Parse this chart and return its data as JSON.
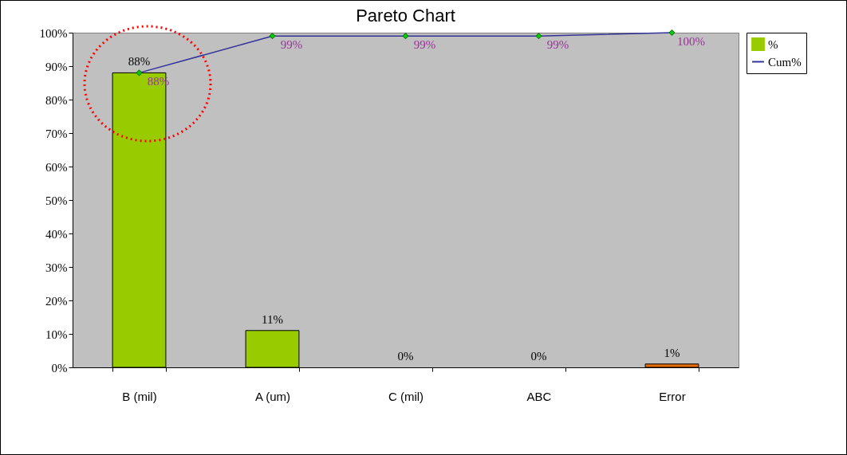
{
  "chart_data": {
    "type": "bar",
    "title": "Pareto Chart",
    "categories": [
      "B (mil)",
      "A (um)",
      "C (mil)",
      "ABC",
      "Error"
    ],
    "series": [
      {
        "name": "%",
        "color": "#99cc00",
        "colors": [
          "#99cc00",
          "#99cc00",
          "#99cc00",
          "#99cc00",
          "#e46c0a"
        ],
        "values": [
          88,
          11,
          0,
          0,
          1
        ],
        "value_labels": [
          "88%",
          "11%",
          "0%",
          "0%",
          "1%"
        ]
      },
      {
        "name": "Cum%",
        "type": "line",
        "color": "#333399",
        "marker": "diamond",
        "values": [
          88,
          99,
          99,
          99,
          100
        ],
        "value_labels": [
          "88%",
          "99%",
          "99%",
          "99%",
          "100%"
        ]
      }
    ],
    "ylim": [
      0,
      100
    ],
    "yticks": [
      {
        "value": 0,
        "label": "0%"
      },
      {
        "value": 10,
        "label": "10%"
      },
      {
        "value": 20,
        "label": "20%"
      },
      {
        "value": 30,
        "label": "30%"
      },
      {
        "value": 40,
        "label": "40%"
      },
      {
        "value": 50,
        "label": "50%"
      },
      {
        "value": 60,
        "label": "60%"
      },
      {
        "value": 70,
        "label": "70%"
      },
      {
        "value": 80,
        "label": "80%"
      },
      {
        "value": 90,
        "label": "90%"
      },
      {
        "value": 100,
        "label": "100%"
      }
    ],
    "grid": false,
    "legend": "right"
  }
}
